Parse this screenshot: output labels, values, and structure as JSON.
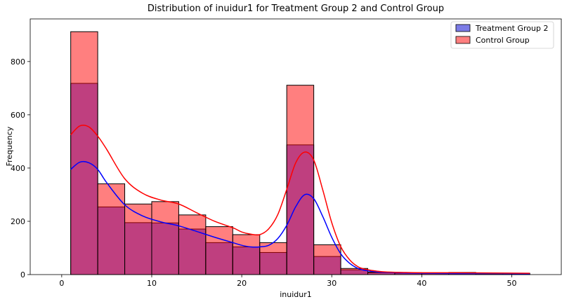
{
  "chart_data": {
    "type": "bar",
    "title": "Distribution of inuidur1 for Treatment Group 2 and Control Group",
    "xlabel": "inuidur1",
    "ylabel": "Frequency",
    "xlim": [
      -3.5,
      55.5
    ],
    "ylim": [
      0,
      960
    ],
    "x_ticks": [
      0,
      10,
      20,
      30,
      40,
      50
    ],
    "y_ticks": [
      0,
      200,
      400,
      600,
      800
    ],
    "grid": false,
    "legend_position": "top-right",
    "bin_edges": [
      1,
      4,
      7,
      10,
      13,
      16,
      19,
      22,
      25,
      28,
      31,
      34,
      37,
      40,
      43,
      46,
      49,
      52
    ],
    "series": [
      {
        "name": "Treatment Group 2",
        "color": "#0000ff",
        "fill": "#7b7be6",
        "values": [
          718,
          254,
          195,
          194,
          171,
          120,
          104,
          83,
          487,
          68,
          18,
          7,
          5,
          4,
          6,
          3,
          3
        ],
        "kde_x": [
          1,
          2,
          3,
          4,
          5,
          7,
          9,
          11,
          13,
          15,
          17,
          19,
          20,
          21,
          22,
          23,
          24,
          25,
          26,
          27,
          28,
          29,
          30,
          31,
          32,
          33,
          34,
          35,
          36,
          38,
          40,
          44,
          48,
          52
        ],
        "kde_y": [
          395,
          422,
          420,
          395,
          345,
          262,
          220,
          198,
          183,
          162,
          140,
          120,
          110,
          104,
          104,
          110,
          135,
          185,
          255,
          300,
          285,
          218,
          140,
          78,
          42,
          22,
          14,
          10,
          8,
          6,
          5,
          4,
          4,
          3
        ]
      },
      {
        "name": "Control Group",
        "color": "#ff0000",
        "fill": "#ff7f7f",
        "values": [
          912,
          341,
          265,
          274,
          224,
          180,
          150,
          120,
          711,
          112,
          23,
          9,
          7,
          6,
          8,
          5,
          5
        ],
        "kde_x": [
          1,
          2,
          3,
          4,
          5,
          7,
          9,
          11,
          13,
          15,
          17,
          19,
          20,
          21,
          22,
          23,
          24,
          25,
          26,
          27,
          28,
          29,
          30,
          31,
          32,
          33,
          34,
          35,
          36,
          38,
          40,
          44,
          48,
          52
        ],
        "kde_y": [
          525,
          558,
          555,
          520,
          470,
          360,
          305,
          280,
          265,
          232,
          200,
          176,
          160,
          152,
          150,
          172,
          225,
          320,
          420,
          460,
          430,
          318,
          195,
          105,
          55,
          28,
          18,
          13,
          10,
          8,
          7,
          7,
          6,
          5
        ]
      }
    ]
  }
}
